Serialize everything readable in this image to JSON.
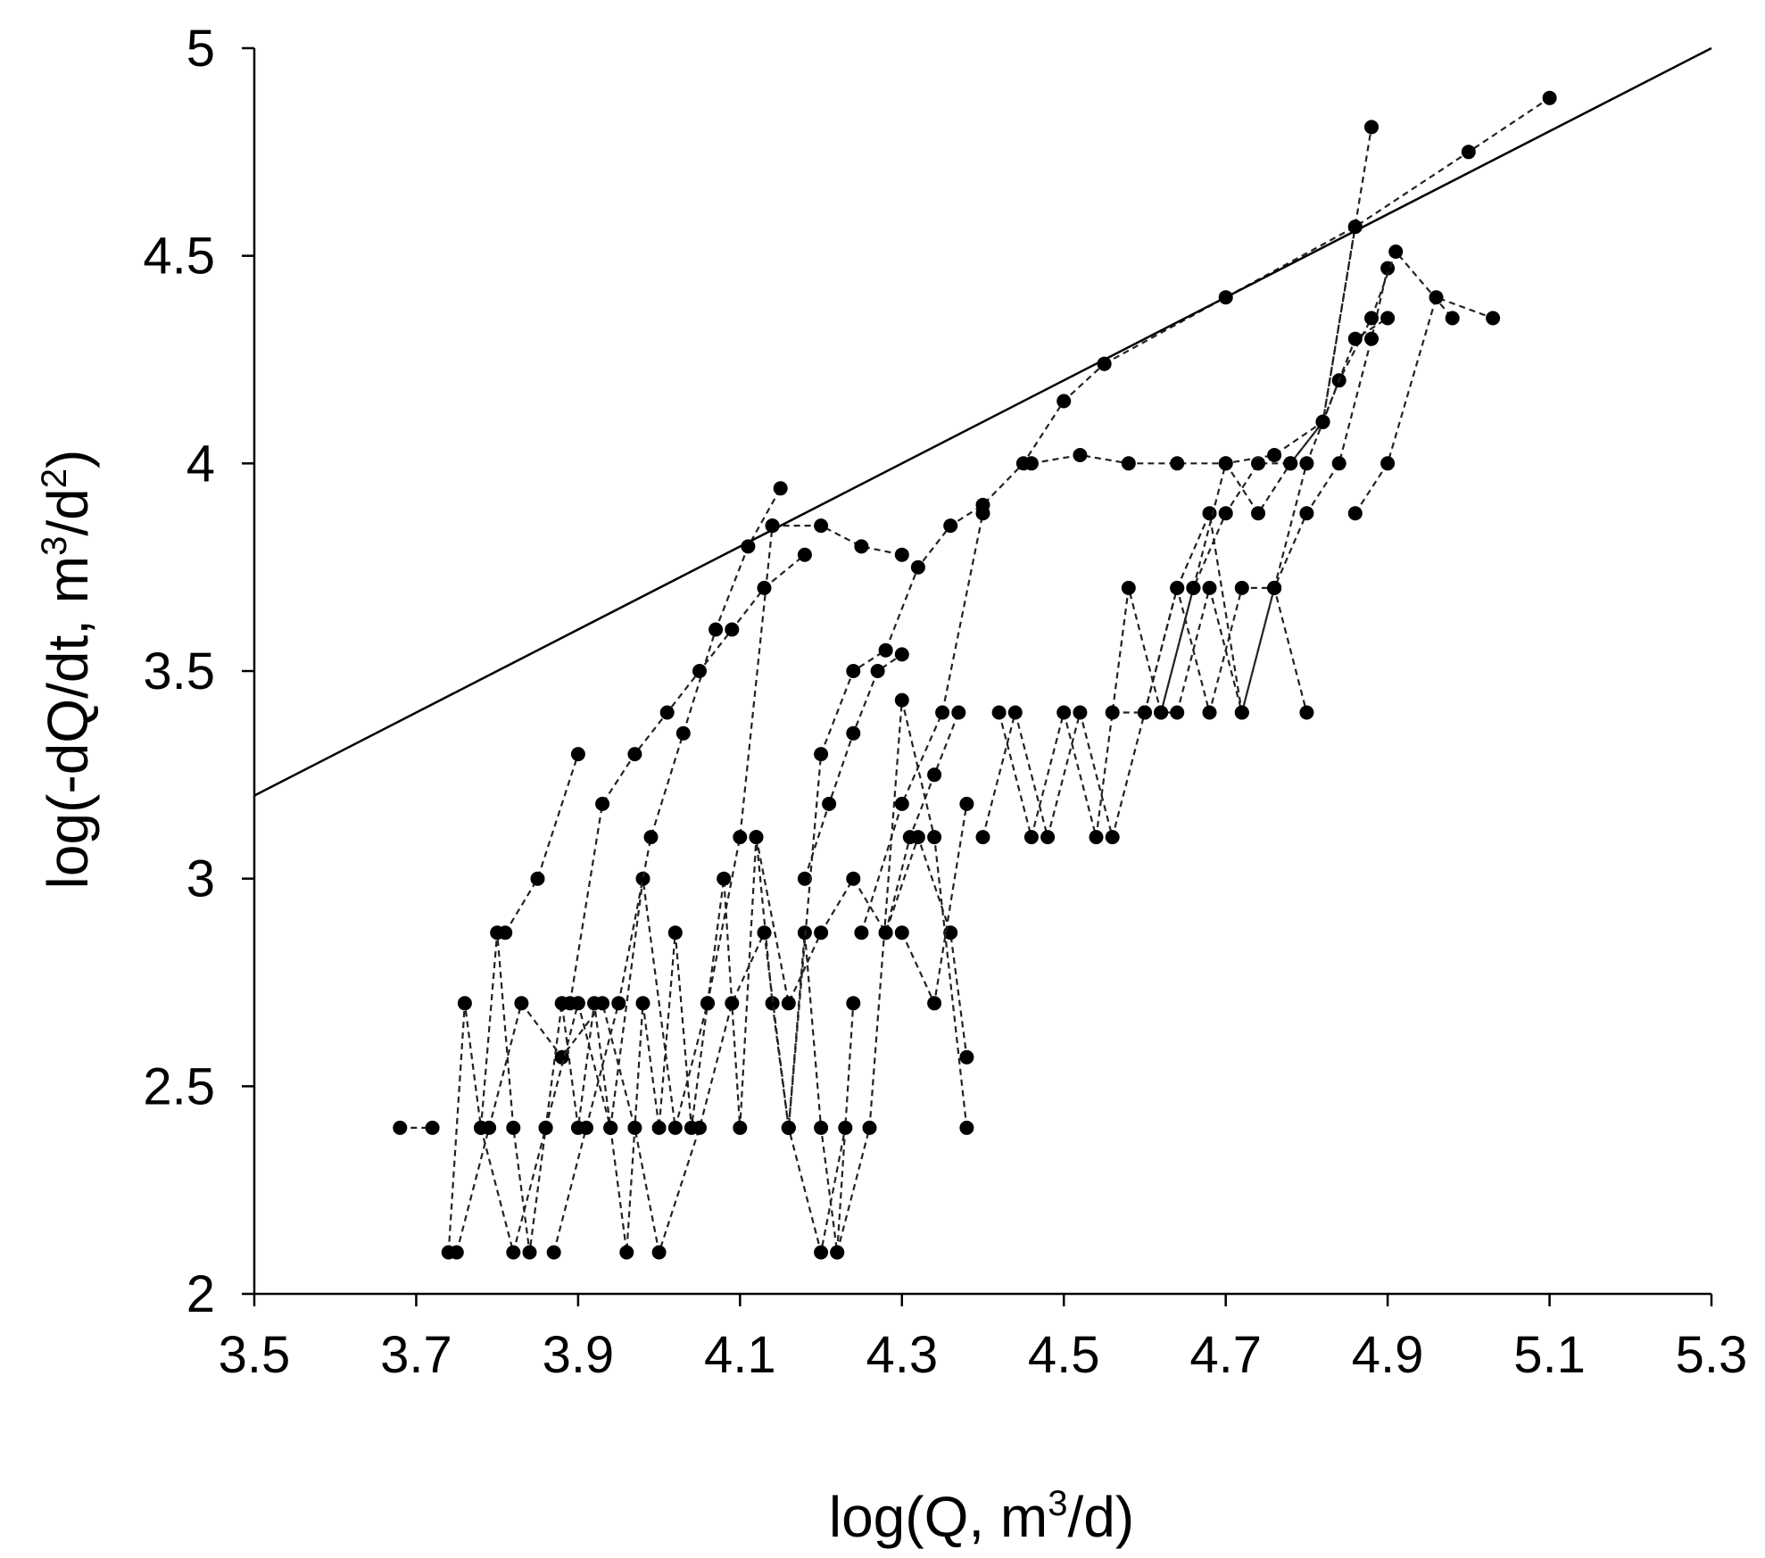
{
  "chart_data": {
    "type": "scatter",
    "title": "",
    "xlabel": {
      "text": "log(Q, m",
      "sup": "3",
      "tail": "/d)"
    },
    "ylabel": {
      "text": "log(-dQ/dt, m",
      "sup": "3",
      "mid": "/d",
      "sup2": "2",
      "tail": ")"
    },
    "xlim": [
      3.5,
      5.3
    ],
    "ylim": [
      2,
      5
    ],
    "x_ticks": [
      "3.5",
      "3.7",
      "3.9",
      "4.1",
      "4.3",
      "4.5",
      "4.7",
      "4.9",
      "5.1",
      "5.3"
    ],
    "y_ticks": [
      "2",
      "2.5",
      "3",
      "3.5",
      "4",
      "4.5",
      "5"
    ],
    "grid": false,
    "trend_line": {
      "x": [
        3.5,
        5.3
      ],
      "y": [
        3.2,
        5.0
      ]
    },
    "series": [
      {
        "name": "series-1",
        "x": [
          3.68,
          3.72
        ],
        "y": [
          2.4,
          2.4
        ]
      },
      {
        "name": "series-2",
        "x": [
          3.74,
          3.76,
          3.78,
          3.8,
          3.82,
          3.84,
          3.86,
          3.88,
          3.9,
          3.92,
          3.94,
          3.96,
          3.98,
          4.0,
          4.02,
          4.04,
          4.06,
          4.08,
          4.1,
          4.12,
          4.14,
          4.16,
          4.18,
          4.2,
          4.22,
          4.24
        ],
        "y": [
          2.1,
          2.7,
          2.4,
          2.87,
          2.4,
          2.1,
          2.4,
          2.7,
          2.4,
          2.7,
          2.4,
          2.1,
          2.7,
          2.4,
          2.87,
          2.4,
          2.7,
          3.0,
          2.4,
          3.1,
          2.7,
          2.4,
          2.87,
          2.4,
          2.1,
          2.7
        ]
      },
      {
        "name": "series-3",
        "x": [
          3.75,
          3.79,
          3.83,
          3.88,
          3.93,
          3.97,
          4.0,
          4.05,
          4.09,
          4.13,
          4.16,
          4.2,
          4.23
        ],
        "y": [
          2.1,
          2.4,
          2.7,
          2.57,
          2.7,
          2.4,
          2.1,
          2.4,
          2.7,
          2.87,
          2.4,
          2.1,
          2.4
        ]
      },
      {
        "name": "series-4",
        "x": [
          3.81,
          3.85,
          3.9
        ],
        "y": [
          2.87,
          3.0,
          3.3
        ]
      },
      {
        "name": "series-5",
        "x": [
          3.78,
          3.82,
          3.86,
          3.9,
          3.94,
          3.98,
          4.02,
          4.06,
          4.1,
          4.14
        ],
        "y": [
          2.4,
          2.1,
          2.4,
          2.7,
          2.4,
          3.0,
          2.4,
          2.7,
          3.1,
          3.85
        ]
      },
      {
        "name": "series-6",
        "x": [
          3.87,
          3.91,
          3.95,
          3.99,
          4.03,
          4.07,
          4.11,
          4.15
        ],
        "y": [
          2.1,
          2.4,
          2.7,
          3.1,
          3.35,
          3.6,
          3.8,
          3.94
        ]
      },
      {
        "name": "series-7",
        "x": [
          3.89,
          3.93,
          3.97,
          4.01,
          4.05,
          4.09,
          4.13,
          4.18
        ],
        "y": [
          2.7,
          3.18,
          3.3,
          3.4,
          3.5,
          3.6,
          3.7,
          3.78
        ]
      },
      {
        "name": "series-8",
        "x": [
          4.14,
          4.2,
          4.25,
          4.3
        ],
        "y": [
          3.85,
          3.85,
          3.8,
          3.78
        ]
      },
      {
        "name": "series-9",
        "x": [
          4.12,
          4.16,
          4.2,
          4.24,
          4.28,
          4.32,
          4.36,
          4.38
        ],
        "y": [
          3.1,
          2.7,
          2.87,
          3.0,
          2.87,
          3.1,
          2.87,
          2.57
        ]
      },
      {
        "name": "series-10",
        "x": [
          4.18,
          4.21,
          4.24,
          4.27,
          4.3
        ],
        "y": [
          3.0,
          3.18,
          3.35,
          3.5,
          3.54
        ]
      },
      {
        "name": "series-11",
        "x": [
          4.16,
          4.2,
          4.24,
          4.28,
          4.32,
          4.36,
          4.4,
          4.45,
          4.5,
          4.55
        ],
        "y": [
          2.4,
          3.3,
          3.5,
          3.55,
          3.75,
          3.85,
          3.9,
          4.0,
          4.15,
          4.24
        ]
      },
      {
        "name": "series-12",
        "x": [
          4.22,
          4.26,
          4.3,
          4.34,
          4.38
        ],
        "y": [
          2.1,
          2.4,
          3.43,
          3.1,
          2.4
        ]
      },
      {
        "name": "series-13",
        "x": [
          4.25,
          4.3,
          4.35,
          4.4
        ],
        "y": [
          2.87,
          3.18,
          3.4,
          3.88
        ]
      },
      {
        "name": "series-14",
        "x": [
          4.28,
          4.31,
          4.34,
          4.37
        ],
        "y": [
          2.87,
          3.1,
          3.25,
          3.4
        ]
      },
      {
        "name": "series-15",
        "x": [
          4.3,
          4.34,
          4.38
        ],
        "y": [
          2.87,
          2.7,
          3.18
        ]
      },
      {
        "name": "series-16",
        "x": [
          4.4,
          4.44,
          4.48,
          4.52,
          4.56,
          4.6,
          4.64,
          4.68,
          4.72,
          4.76,
          4.8
        ],
        "y": [
          3.1,
          3.4,
          3.1,
          3.4,
          3.1,
          3.4,
          3.7,
          3.4,
          3.7,
          3.7,
          3.4
        ]
      },
      {
        "name": "series-17",
        "x": [
          4.42,
          4.46,
          4.5,
          4.54,
          4.58,
          4.62,
          4.66,
          4.7,
          4.74,
          4.78,
          4.82,
          4.86
        ],
        "y": [
          3.4,
          3.1,
          3.4,
          3.1,
          3.7,
          3.4,
          3.7,
          3.88,
          4.0,
          4.0,
          4.1,
          4.57
        ]
      },
      {
        "name": "series-18",
        "x": [
          4.46,
          4.52,
          4.58,
          4.64,
          4.7,
          4.76,
          4.82,
          4.88
        ],
        "y": [
          4.0,
          4.02,
          4.0,
          4.0,
          4.0,
          4.02,
          4.1,
          4.81
        ]
      },
      {
        "name": "series-19",
        "x": [
          4.56,
          4.6,
          4.64,
          4.68,
          4.72,
          4.76,
          4.8,
          4.84,
          4.88,
          4.9
        ],
        "y": [
          3.4,
          3.4,
          3.7,
          3.88,
          3.4,
          3.7,
          3.88,
          4.0,
          4.3,
          4.47
        ]
      },
      {
        "name": "series-20",
        "x": [
          4.6,
          4.64,
          4.68,
          4.72,
          4.76,
          4.8,
          4.84,
          4.88,
          4.91,
          4.98
        ],
        "y": [
          3.4,
          3.4,
          3.7,
          3.4,
          3.7,
          4.0,
          4.2,
          4.35,
          4.51,
          4.35
        ]
      },
      {
        "name": "series-21",
        "x": [
          4.62,
          4.66,
          4.7,
          4.74,
          4.78,
          4.82,
          4.86,
          4.9
        ],
        "y": [
          3.4,
          3.7,
          4.0,
          3.88,
          4.0,
          4.1,
          4.3,
          4.35
        ]
      },
      {
        "name": "series-22",
        "x": [
          4.86,
          4.9,
          4.96,
          5.03
        ],
        "y": [
          3.88,
          4.0,
          4.4,
          4.35
        ]
      },
      {
        "name": "series-23",
        "x": [
          4.55,
          4.7,
          4.86,
          5.0,
          5.1
        ],
        "y": [
          4.24,
          4.4,
          4.57,
          4.75,
          4.88
        ]
      }
    ]
  }
}
